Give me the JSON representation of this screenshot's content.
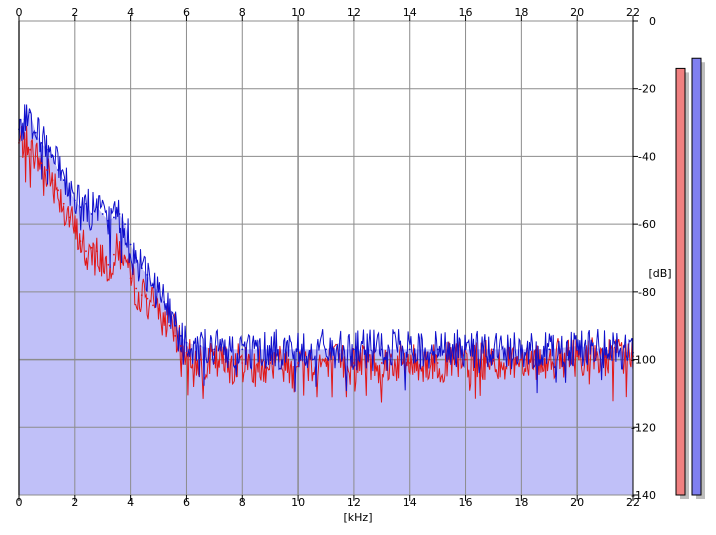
{
  "chart_data": {
    "type": "area",
    "xlabel": "[kHz]",
    "ylabel": "[dB]",
    "xlim": [
      0,
      22
    ],
    "ylim": [
      -140,
      0
    ],
    "x_ticks": [
      "0",
      "2",
      "4",
      "6",
      "8",
      "10",
      "12",
      "14",
      "16",
      "18",
      "20",
      "22"
    ],
    "y_ticks": [
      "0",
      "-20",
      "-40",
      "-60",
      "-80",
      "-100",
      "-120",
      "-140"
    ],
    "grid": true,
    "fill_color": "#c0c0f8",
    "series": [
      {
        "color": "#1010cc",
        "x": [
          0,
          0.2,
          0.4,
          0.6,
          0.8,
          1.0,
          1.2,
          1.4,
          1.6,
          1.8,
          2.0,
          2.2,
          2.4,
          2.6,
          2.8,
          3.0,
          3.2,
          3.4,
          3.6,
          3.8,
          4.0,
          4.2,
          4.4,
          4.6,
          4.8,
          5.0,
          5.2,
          5.4,
          5.6,
          5.8,
          6.0,
          6.5,
          7.0,
          8.0,
          9.0,
          10.0,
          11.0,
          12.0,
          13.0,
          14.0,
          15.0,
          16.0,
          17.0,
          18.0,
          19.0,
          20.0,
          21.0,
          22.0
        ],
        "values": [
          -32,
          -29,
          -27,
          -33,
          -36,
          -38,
          -40,
          -44,
          -47,
          -50,
          -53,
          -55,
          -54,
          -57,
          -55,
          -57,
          -59,
          -58,
          -57,
          -60,
          -66,
          -70,
          -73,
          -75,
          -78,
          -80,
          -83,
          -86,
          -90,
          -93,
          -95,
          -96,
          -97,
          -97,
          -97,
          -97,
          -97,
          -97,
          -97,
          -97,
          -97,
          -97,
          -97,
          -97,
          -97,
          -96,
          -97,
          -98
        ]
      },
      {
        "color": "#e01818",
        "x": [
          0,
          0.2,
          0.4,
          0.6,
          0.8,
          1.0,
          1.2,
          1.4,
          1.6,
          1.8,
          2.0,
          2.2,
          2.4,
          2.6,
          2.8,
          3.0,
          3.2,
          3.4,
          3.6,
          3.8,
          4.0,
          4.2,
          4.4,
          4.6,
          4.8,
          5.0,
          5.2,
          5.4,
          5.6,
          5.8,
          6.0,
          6.5,
          7.0,
          8.0,
          9.0,
          10.0,
          11.0,
          12.0,
          13.0,
          14.0,
          15.0,
          16.0,
          17.0,
          18.0,
          19.0,
          20.0,
          21.0,
          22.0
        ],
        "values": [
          -36,
          -35,
          -38,
          -40,
          -42,
          -44,
          -47,
          -50,
          -54,
          -58,
          -62,
          -65,
          -68,
          -67,
          -68,
          -70,
          -72,
          -69,
          -68,
          -70,
          -76,
          -79,
          -81,
          -82,
          -84,
          -85,
          -88,
          -90,
          -93,
          -96,
          -98,
          -100,
          -101,
          -101,
          -101,
          -101,
          -101,
          -101,
          -101,
          -101,
          -101,
          -100,
          -100,
          -100,
          -100,
          -99,
          -99,
          -99
        ]
      }
    ],
    "meters": [
      {
        "color": "#f08080",
        "level_db": -14
      },
      {
        "color": "#8080f0",
        "level_db": -11
      }
    ]
  }
}
